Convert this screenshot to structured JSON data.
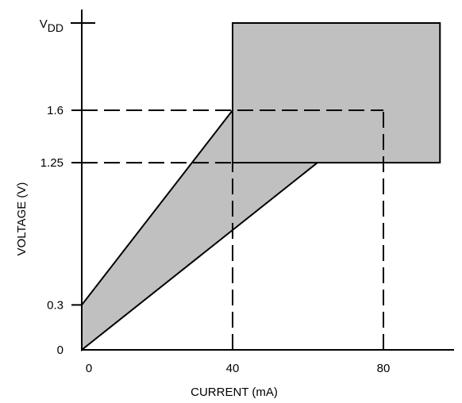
{
  "chart_data": {
    "type": "area",
    "title": "",
    "xlabel": "CURRENT (mA)",
    "ylabel": "VOLTAGE (V)",
    "x_ticks": [
      {
        "value": 0,
        "label": "0"
      },
      {
        "value": 40,
        "label": "40"
      },
      {
        "value": 80,
        "label": "80"
      }
    ],
    "y_ticks": [
      {
        "value": 0,
        "label": "0"
      },
      {
        "value": 0.3,
        "label": "0.3"
      },
      {
        "value": 1.25,
        "label": "1.25"
      },
      {
        "value": 1.6,
        "label": "1.6"
      }
    ],
    "vdd_label": {
      "main": "V",
      "subscript": "DD"
    },
    "regions": [
      {
        "shape": "polygon",
        "points": [
          [
            0,
            0
          ],
          [
            0,
            0.3
          ],
          [
            40,
            1.6
          ],
          [
            80,
            1.6
          ],
          [
            0,
            0
          ]
        ]
      },
      {
        "shape": "rect",
        "x": [
          40,
          95
        ],
        "y": [
          1.25,
          "VDD"
        ]
      }
    ],
    "guides": [
      {
        "from": [
          0,
          1.6
        ],
        "to": [
          80,
          1.6
        ]
      },
      {
        "from": [
          0,
          1.25
        ],
        "to": [
          40,
          1.25
        ]
      },
      {
        "from": [
          40,
          0
        ],
        "to": [
          40,
          1.6
        ]
      },
      {
        "from": [
          80,
          0
        ],
        "to": [
          80,
          1.6
        ]
      }
    ],
    "grid": false,
    "legend": "none",
    "colors": {
      "fill": "#c0c0c0",
      "stroke": "#000000"
    }
  }
}
